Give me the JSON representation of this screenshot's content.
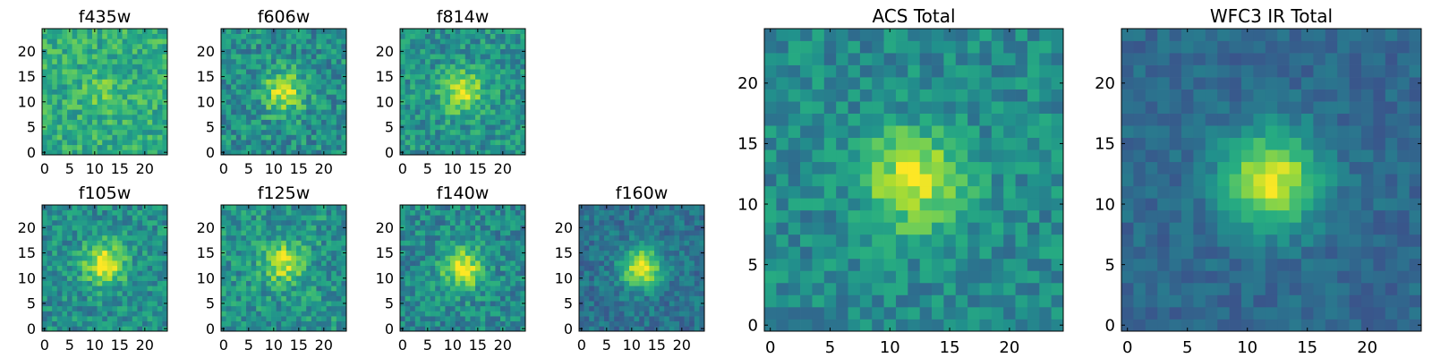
{
  "chart_data": {
    "type": "heatmap",
    "colormap": "viridis",
    "grid": false,
    "panels": [
      {
        "id": "f435w",
        "title": "f435w",
        "size": 25,
        "xlim": [
          -0.5,
          24.5
        ],
        "ylim": [
          -0.5,
          24.5
        ],
        "xticks": [
          0,
          5,
          10,
          15,
          20
        ],
        "yticks": [
          0,
          5,
          10,
          15,
          20
        ],
        "peak": [
          12,
          12
        ],
        "peak_intensity": 0.12,
        "noise": 0.32,
        "baseline": 0.62,
        "seed": 11
      },
      {
        "id": "f606w",
        "title": "f606w",
        "size": 25,
        "xlim": [
          -0.5,
          24.5
        ],
        "ylim": [
          -0.5,
          24.5
        ],
        "xticks": [
          0,
          5,
          10,
          15,
          20
        ],
        "yticks": [
          0,
          5,
          10,
          15,
          20
        ],
        "peak": [
          12,
          12
        ],
        "peak_intensity": 0.45,
        "noise": 0.36,
        "baseline": 0.5,
        "seed": 23
      },
      {
        "id": "f814w",
        "title": "f814w",
        "size": 25,
        "xlim": [
          -0.5,
          24.5
        ],
        "ylim": [
          -0.5,
          24.5
        ],
        "xticks": [
          0,
          5,
          10,
          15,
          20
        ],
        "yticks": [
          0,
          5,
          10,
          15,
          20
        ],
        "peak": [
          12,
          12
        ],
        "peak_intensity": 0.42,
        "noise": 0.33,
        "baseline": 0.52,
        "seed": 37
      },
      {
        "id": "f105w",
        "title": "f105w",
        "size": 25,
        "xlim": [
          -0.5,
          24.5
        ],
        "ylim": [
          -0.5,
          24.5
        ],
        "xticks": [
          0,
          5,
          10,
          15,
          20
        ],
        "yticks": [
          0,
          5,
          10,
          15,
          20
        ],
        "peak": [
          12,
          13
        ],
        "peak_intensity": 0.52,
        "noise": 0.32,
        "baseline": 0.5,
        "seed": 41
      },
      {
        "id": "f125w",
        "title": "f125w",
        "size": 25,
        "xlim": [
          -0.5,
          24.5
        ],
        "ylim": [
          -0.5,
          24.5
        ],
        "xticks": [
          0,
          5,
          10,
          15,
          20
        ],
        "yticks": [
          0,
          5,
          10,
          15,
          20
        ],
        "peak": [
          12,
          13
        ],
        "peak_intensity": 0.4,
        "noise": 0.34,
        "baseline": 0.52,
        "seed": 53
      },
      {
        "id": "f140w",
        "title": "f140w",
        "size": 25,
        "xlim": [
          -0.5,
          24.5
        ],
        "ylim": [
          -0.5,
          24.5
        ],
        "xticks": [
          0,
          5,
          10,
          15,
          20
        ],
        "yticks": [
          0,
          5,
          10,
          15,
          20
        ],
        "peak": [
          12,
          12
        ],
        "peak_intensity": 0.5,
        "noise": 0.33,
        "baseline": 0.48,
        "seed": 67
      },
      {
        "id": "f160w",
        "title": "f160w",
        "size": 25,
        "xlim": [
          -0.5,
          24.5
        ],
        "ylim": [
          -0.5,
          24.5
        ],
        "xticks": [
          0,
          5,
          10,
          15,
          20
        ],
        "yticks": [
          0,
          5,
          10,
          15,
          20
        ],
        "peak": [
          12,
          12
        ],
        "peak_intensity": 0.6,
        "noise": 0.24,
        "baseline": 0.38,
        "seed": 79
      },
      {
        "id": "acs-total",
        "title": "ACS Total",
        "size": 25,
        "xlim": [
          -0.5,
          24.5
        ],
        "ylim": [
          -0.5,
          24.5
        ],
        "xticks": [
          0,
          5,
          10,
          15,
          20
        ],
        "yticks": [
          0,
          5,
          10,
          15,
          20
        ],
        "peak": [
          12,
          12
        ],
        "peak_intensity": 0.48,
        "noise": 0.28,
        "baseline": 0.48,
        "seed": 97
      },
      {
        "id": "wfc3-ir-total",
        "title": "WFC3 IR Total",
        "size": 25,
        "xlim": [
          -0.5,
          24.5
        ],
        "ylim": [
          -0.5,
          24.5
        ],
        "xticks": [
          0,
          5,
          10,
          15,
          20
        ],
        "yticks": [
          0,
          5,
          10,
          15,
          20
        ],
        "peak": [
          12,
          12
        ],
        "peak_intensity": 0.62,
        "noise": 0.16,
        "baseline": 0.34,
        "seed": 131
      }
    ]
  }
}
